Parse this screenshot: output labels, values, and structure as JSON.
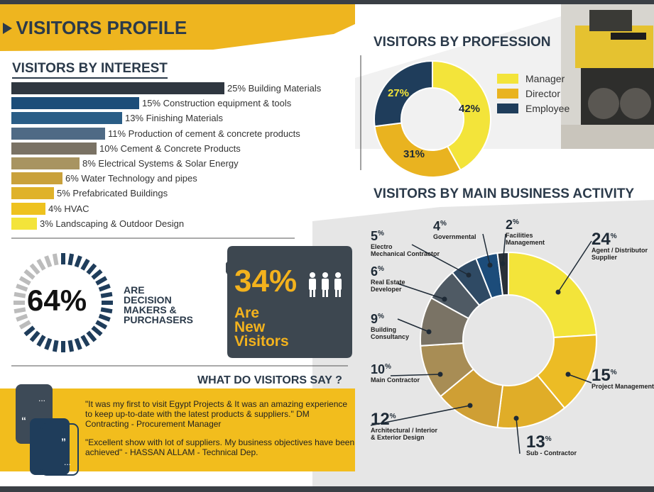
{
  "header": {
    "title": "VISITORS PROFILE",
    "arrow_icon": "play-arrow-icon"
  },
  "colors": {
    "yellow": "#f0e13c",
    "gold": "#e9b320",
    "dark": "#1f3d5b",
    "slate": "#3f4a55",
    "bg_grey": "#ececec"
  },
  "interest": {
    "title": "VISITORS BY INTEREST",
    "chart_data": {
      "type": "bar",
      "orientation": "horizontal",
      "categories": [
        "Building Materials",
        "Construction equipment & tools",
        "Finishing Materials",
        "Production of cement & concrete products",
        "Cement & Concrete Products",
        "Electrical Systems & Solar Energy",
        "Water Technology and pipes",
        "Prefabricated Buildings",
        "HVAC",
        "Landscaping & Outdoor Design"
      ],
      "values": [
        25,
        15,
        13,
        11,
        10,
        8,
        6,
        5,
        4,
        3
      ],
      "labels": [
        "25% Building Materials",
        "15% Construction equipment & tools",
        "13% Finishing Materials",
        "11% Production of cement & concrete products",
        "10% Cement & Concrete Products",
        "8%  Electrical Systems & Solar Energy",
        "6% Water Technology and pipes",
        "5% Prefabricated Buildings",
        "4% HVAC",
        "3% Landscaping & Outdoor Design"
      ],
      "colors": [
        "#2f3740",
        "#1c4d79",
        "#2a5d86",
        "#4f6a85",
        "#7a7264",
        "#a89461",
        "#c9a13c",
        "#dfb22a",
        "#eec21f",
        "#f3e43a"
      ]
    }
  },
  "profession": {
    "title": "VISITORS BY PROFESSION",
    "chart_data": {
      "type": "pie",
      "categories": [
        "Manager",
        "Director",
        "Employee"
      ],
      "values": [
        42,
        31,
        27
      ],
      "colors": [
        "#f3e43a",
        "#e9b320",
        "#1f3d5b"
      ]
    },
    "labels": [
      "42%",
      "31%",
      "27%"
    ]
  },
  "decision": {
    "pct": "64%",
    "text_lines": [
      "ARE",
      "DECISION",
      "MAKERS &",
      "PURCHASERS"
    ]
  },
  "new_visitors": {
    "pct": "34%",
    "line1": "Are",
    "line2": "New",
    "line3": "Visitors",
    "icon": "people-icon"
  },
  "say": {
    "title": "WHAT DO VISITORS SAY ?",
    "quote1": "\"It was my first to visit Egypt Projects & It was an amazing experience to keep up-to-date with the latest products & suppliers.\" DM Contracting - Procurement Manager",
    "quote2": "\"Excellent show with lot of suppliers. My business objectives have been achieved\" - HASSAN ALLAM - Technical Dep."
  },
  "activity": {
    "title": "VISITORS BY MAIN BUSINESS ACTIVITY",
    "chart_data": {
      "type": "pie",
      "categories": [
        "Agent / Distributor Supplier",
        "Project Management",
        "Sub - Contractor",
        "Architectural / Interior & Exterior Design",
        "Main Contractor",
        "Building Consultancy",
        "Real Estate Developer",
        "Electro Mechanical Contractor",
        "Governmental",
        "Facilities Management"
      ],
      "values": [
        24,
        15,
        13,
        12,
        10,
        9,
        6,
        5,
        4,
        2
      ],
      "colors": [
        "#f3e43a",
        "#ecbc25",
        "#e0ad28",
        "#cf9f34",
        "#a88d55",
        "#7a7365",
        "#4f5a64",
        "#2f4a64",
        "#1c4c7a",
        "#2a3038"
      ]
    },
    "labels": [
      {
        "num": "24",
        "name": "Agent / Distributor\nSupplier"
      },
      {
        "num": "15",
        "name": "Project Management"
      },
      {
        "num": "13",
        "name": "Sub - Contractor"
      },
      {
        "num": "12",
        "name": "Architectural / Interior\n& Exterior Design"
      },
      {
        "num": "10",
        "name": "Main Contractor"
      },
      {
        "num": "9",
        "name": "Building\nConsultancy"
      },
      {
        "num": "6",
        "name": "Real Estate\nDeveloper"
      },
      {
        "num": "5",
        "name": "Electro\nMechanical Contractor"
      },
      {
        "num": "4",
        "name": "Governmental"
      },
      {
        "num": "2",
        "name": "Facilities\nManagement"
      }
    ],
    "pct_sign": "%"
  }
}
